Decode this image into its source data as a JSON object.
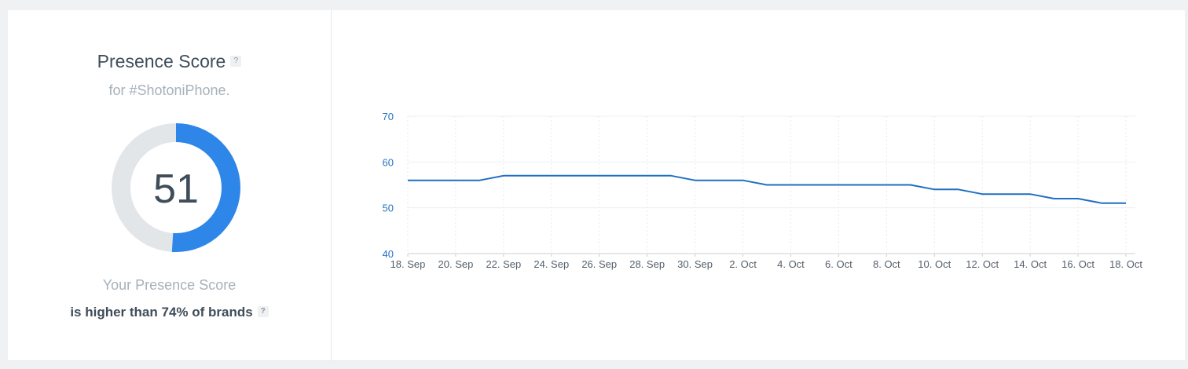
{
  "panel": {
    "title": "Presence Score",
    "subtitle": "for #ShotoniPhone.",
    "help_glyph": "?",
    "score": "51",
    "score_fraction": 0.51,
    "caption_line1": "Your Presence Score",
    "caption_line2": "is higher than 74% of brands"
  },
  "colors": {
    "accent": "#2e86e8",
    "track": "#e3e6e9",
    "line": "#1f6fc2",
    "axis_label": "#2a75c4"
  },
  "chart_data": {
    "type": "line",
    "title": "",
    "xlabel": "",
    "ylabel": "",
    "ylim": [
      40,
      70
    ],
    "yticks": [
      40,
      50,
      60,
      70
    ],
    "grid": true,
    "x_tick_labels": [
      "18. Sep",
      "20. Sep",
      "22. Sep",
      "24. Sep",
      "26. Sep",
      "28. Sep",
      "30. Sep",
      "2. Oct",
      "4. Oct",
      "6. Oct",
      "8. Oct",
      "10. Oct",
      "12. Oct",
      "14. Oct",
      "16. Oct",
      "18. Oct"
    ],
    "x": [
      "2021-09-18",
      "2021-09-19",
      "2021-09-20",
      "2021-09-21",
      "2021-09-22",
      "2021-09-23",
      "2021-09-24",
      "2021-09-25",
      "2021-09-26",
      "2021-09-27",
      "2021-09-28",
      "2021-09-29",
      "2021-09-30",
      "2021-10-01",
      "2021-10-02",
      "2021-10-03",
      "2021-10-04",
      "2021-10-05",
      "2021-10-06",
      "2021-10-07",
      "2021-10-08",
      "2021-10-09",
      "2021-10-10",
      "2021-10-11",
      "2021-10-12",
      "2021-10-13",
      "2021-10-14",
      "2021-10-15",
      "2021-10-16",
      "2021-10-17",
      "2021-10-18"
    ],
    "series": [
      {
        "values": [
          56,
          56,
          56,
          56,
          57,
          57,
          57,
          57,
          57,
          57,
          57,
          57,
          56,
          56,
          56,
          55,
          55,
          55,
          55,
          55,
          55,
          55,
          54,
          54,
          53,
          53,
          53,
          52,
          52,
          51,
          51
        ]
      }
    ]
  }
}
